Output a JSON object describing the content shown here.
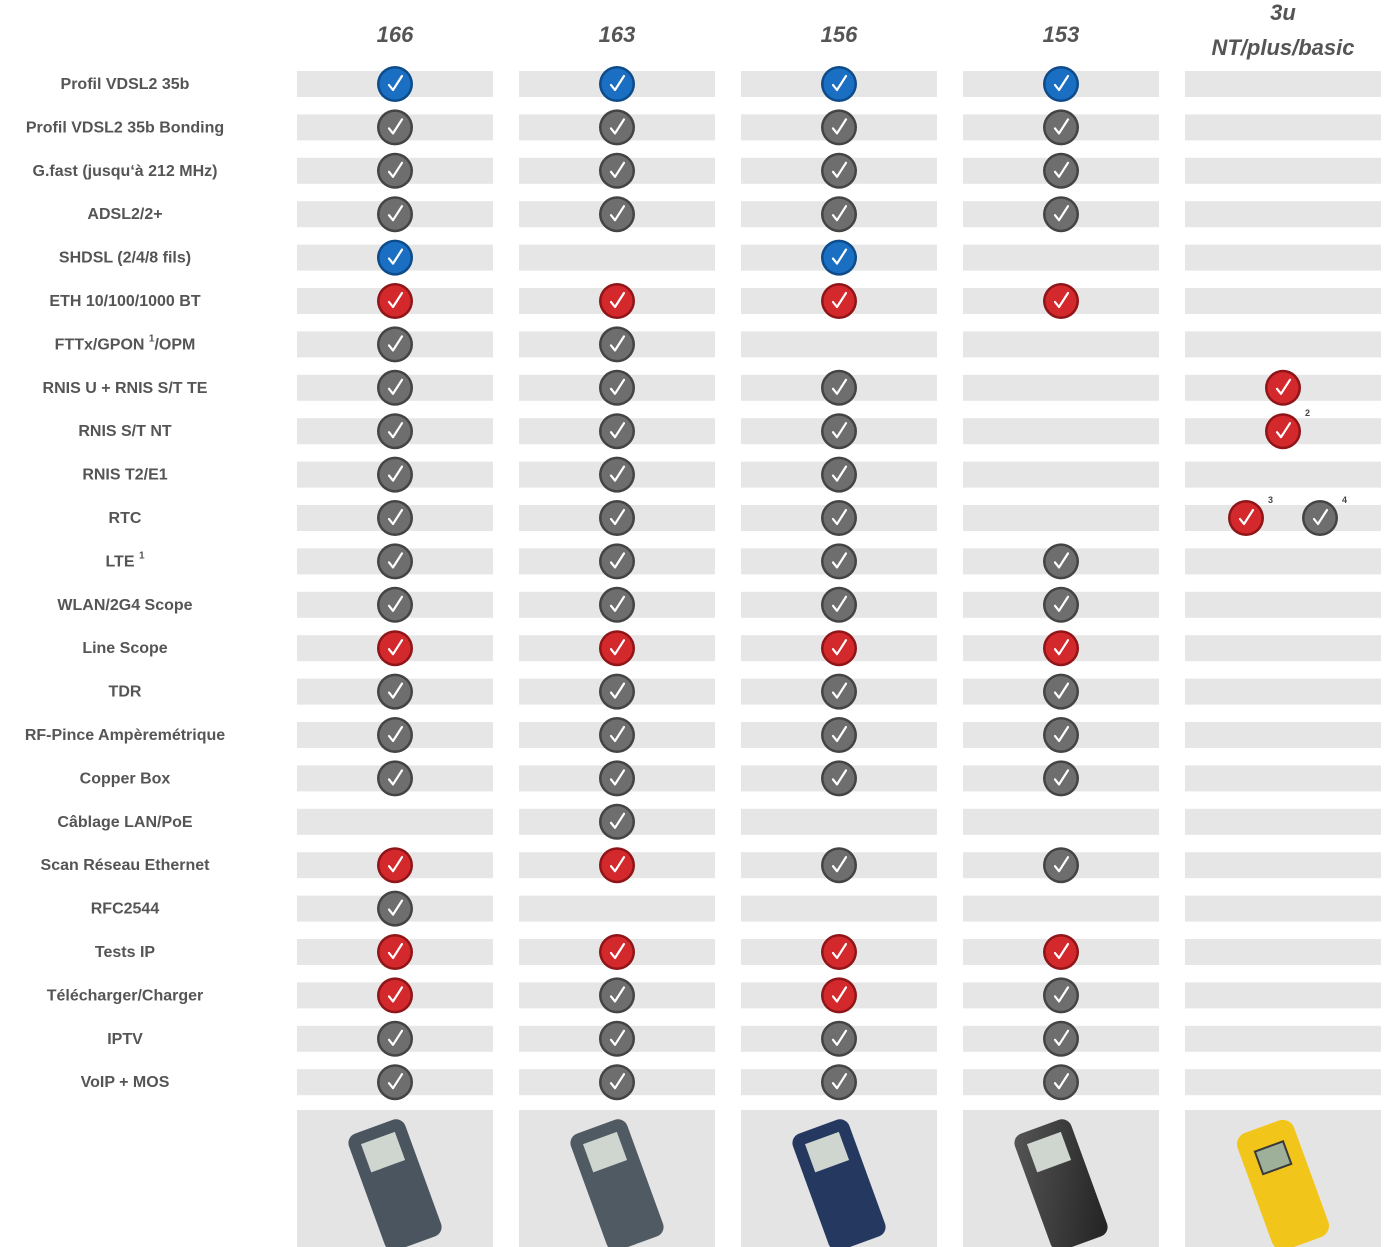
{
  "colors": {
    "blue": "#1b6fc2",
    "gray": "#6e6e6e",
    "red": "#d3282c"
  },
  "columns": [
    {
      "lines": [
        "166"
      ]
    },
    {
      "lines": [
        "163"
      ]
    },
    {
      "lines": [
        "156"
      ]
    },
    {
      "lines": [
        "153"
      ]
    },
    {
      "lines": [
        "3u",
        "NT/plus/basic"
      ]
    }
  ],
  "rows": [
    {
      "label": "Profil VDSL2 35b",
      "cells": [
        [
          {
            "color": "blue"
          }
        ],
        [
          {
            "color": "blue"
          }
        ],
        [
          {
            "color": "blue"
          }
        ],
        [
          {
            "color": "blue"
          }
        ],
        []
      ]
    },
    {
      "label": "Profil VDSL2 35b Bonding",
      "cells": [
        [
          {
            "color": "gray"
          }
        ],
        [
          {
            "color": "gray"
          }
        ],
        [
          {
            "color": "gray"
          }
        ],
        [
          {
            "color": "gray"
          }
        ],
        []
      ]
    },
    {
      "label": "G.fast (jusqu‘à 212 MHz)",
      "cells": [
        [
          {
            "color": "gray"
          }
        ],
        [
          {
            "color": "gray"
          }
        ],
        [
          {
            "color": "gray"
          }
        ],
        [
          {
            "color": "gray"
          }
        ],
        []
      ]
    },
    {
      "label": "ADSL2/2+",
      "cells": [
        [
          {
            "color": "gray"
          }
        ],
        [
          {
            "color": "gray"
          }
        ],
        [
          {
            "color": "gray"
          }
        ],
        [
          {
            "color": "gray"
          }
        ],
        []
      ]
    },
    {
      "label": "SHDSL (2/4/8 fils)",
      "cells": [
        [
          {
            "color": "blue"
          }
        ],
        [],
        [
          {
            "color": "blue"
          }
        ],
        [],
        []
      ]
    },
    {
      "label": "ETH 10/100/1000 BT",
      "cells": [
        [
          {
            "color": "red"
          }
        ],
        [
          {
            "color": "red"
          }
        ],
        [
          {
            "color": "red"
          }
        ],
        [
          {
            "color": "red"
          }
        ],
        []
      ]
    },
    {
      "label": "FTTx/GPON ",
      "label_sup": "1",
      "label_rest": "/OPM",
      "cells": [
        [
          {
            "color": "gray"
          }
        ],
        [
          {
            "color": "gray"
          }
        ],
        [],
        [],
        []
      ]
    },
    {
      "label": "RNIS U + RNIS S/T TE",
      "cells": [
        [
          {
            "color": "gray"
          }
        ],
        [
          {
            "color": "gray"
          }
        ],
        [
          {
            "color": "gray"
          }
        ],
        [],
        [
          {
            "color": "red"
          }
        ]
      ]
    },
    {
      "label": "RNIS S/T NT",
      "cells": [
        [
          {
            "color": "gray"
          }
        ],
        [
          {
            "color": "gray"
          }
        ],
        [
          {
            "color": "gray"
          }
        ],
        [],
        [
          {
            "color": "red",
            "note": "2"
          }
        ]
      ]
    },
    {
      "label": "RNIS T2/E1",
      "cells": [
        [
          {
            "color": "gray"
          }
        ],
        [
          {
            "color": "gray"
          }
        ],
        [
          {
            "color": "gray"
          }
        ],
        [],
        []
      ]
    },
    {
      "label": "RTC",
      "cells": [
        [
          {
            "color": "gray"
          }
        ],
        [
          {
            "color": "gray"
          }
        ],
        [
          {
            "color": "gray"
          }
        ],
        [],
        [
          {
            "color": "red",
            "note": "3"
          },
          {
            "color": "gray",
            "note": "4"
          }
        ]
      ]
    },
    {
      "label": "LTE ",
      "label_sup": "1",
      "cells": [
        [
          {
            "color": "gray"
          }
        ],
        [
          {
            "color": "gray"
          }
        ],
        [
          {
            "color": "gray"
          }
        ],
        [
          {
            "color": "gray"
          }
        ],
        []
      ]
    },
    {
      "label": "WLAN/2G4 Scope",
      "cells": [
        [
          {
            "color": "gray"
          }
        ],
        [
          {
            "color": "gray"
          }
        ],
        [
          {
            "color": "gray"
          }
        ],
        [
          {
            "color": "gray"
          }
        ],
        []
      ]
    },
    {
      "label": "Line Scope",
      "cells": [
        [
          {
            "color": "red"
          }
        ],
        [
          {
            "color": "red"
          }
        ],
        [
          {
            "color": "red"
          }
        ],
        [
          {
            "color": "red"
          }
        ],
        []
      ]
    },
    {
      "label": "TDR",
      "cells": [
        [
          {
            "color": "gray"
          }
        ],
        [
          {
            "color": "gray"
          }
        ],
        [
          {
            "color": "gray"
          }
        ],
        [
          {
            "color": "gray"
          }
        ],
        []
      ]
    },
    {
      "label": "RF-Pince Ampèremétrique",
      "cells": [
        [
          {
            "color": "gray"
          }
        ],
        [
          {
            "color": "gray"
          }
        ],
        [
          {
            "color": "gray"
          }
        ],
        [
          {
            "color": "gray"
          }
        ],
        []
      ]
    },
    {
      "label": "Copper Box",
      "cells": [
        [
          {
            "color": "gray"
          }
        ],
        [
          {
            "color": "gray"
          }
        ],
        [
          {
            "color": "gray"
          }
        ],
        [
          {
            "color": "gray"
          }
        ],
        []
      ]
    },
    {
      "label": "Câblage LAN/PoE",
      "cells": [
        [],
        [
          {
            "color": "gray"
          }
        ],
        [],
        [],
        []
      ]
    },
    {
      "label": "Scan Réseau Ethernet",
      "cells": [
        [
          {
            "color": "red"
          }
        ],
        [
          {
            "color": "red"
          }
        ],
        [
          {
            "color": "gray"
          }
        ],
        [
          {
            "color": "gray"
          }
        ],
        []
      ]
    },
    {
      "label": "RFC2544",
      "cells": [
        [
          {
            "color": "gray"
          }
        ],
        [],
        [],
        [],
        []
      ]
    },
    {
      "label": "Tests IP",
      "cells": [
        [
          {
            "color": "red"
          }
        ],
        [
          {
            "color": "red"
          }
        ],
        [
          {
            "color": "red"
          }
        ],
        [
          {
            "color": "red"
          }
        ],
        []
      ]
    },
    {
      "label": "Télécharger/Charger",
      "cells": [
        [
          {
            "color": "red"
          }
        ],
        [
          {
            "color": "gray"
          }
        ],
        [
          {
            "color": "red"
          }
        ],
        [
          {
            "color": "gray"
          }
        ],
        []
      ]
    },
    {
      "label": "IPTV",
      "cells": [
        [
          {
            "color": "gray"
          }
        ],
        [
          {
            "color": "gray"
          }
        ],
        [
          {
            "color": "gray"
          }
        ],
        [
          {
            "color": "gray"
          }
        ],
        []
      ]
    },
    {
      "label": "VoIP + MOS",
      "cells": [
        [
          {
            "color": "gray"
          }
        ],
        [
          {
            "color": "gray"
          }
        ],
        [
          {
            "color": "gray"
          }
        ],
        [
          {
            "color": "gray"
          }
        ],
        []
      ]
    }
  ]
}
